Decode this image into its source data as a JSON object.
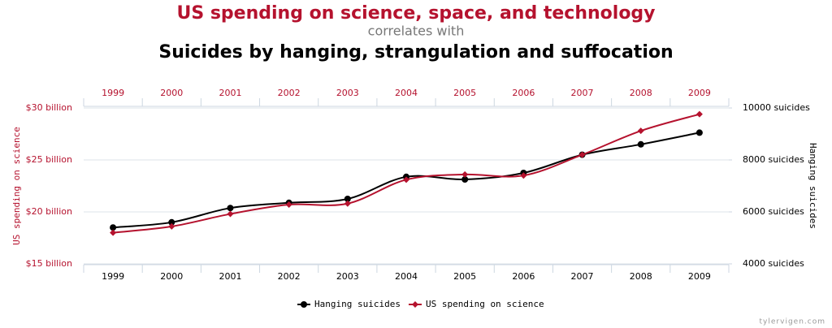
{
  "chart_data": {
    "type": "line",
    "title": "US spending on science, space, and technology",
    "subtitle": "correlates with",
    "title2": "Suicides by hanging, strangulation and suffocation",
    "categories": [
      "1999",
      "2000",
      "2001",
      "2002",
      "2003",
      "2004",
      "2005",
      "2006",
      "2007",
      "2008",
      "2009"
    ],
    "series": [
      {
        "name": "Hanging suicides",
        "color": "#000000",
        "axis": "y2",
        "values": [
          5400,
          5600,
          6150,
          6350,
          6500,
          7350,
          7250,
          7500,
          8200,
          8600,
          9050
        ]
      },
      {
        "name": "US spending on science",
        "color": "#b5122e",
        "values": [
          18.0,
          18.6,
          19.8,
          20.7,
          20.8,
          23.1,
          23.6,
          23.5,
          25.5,
          27.8,
          29.4
        ]
      }
    ],
    "ylabel": "US spending on science",
    "y2label": "Hanging suicides",
    "ylim": [
      15,
      30
    ],
    "yticks": [
      {
        "value": 15,
        "label": "$15 billion"
      },
      {
        "value": 20,
        "label": "$20 billion"
      },
      {
        "value": 25,
        "label": "$25 billion"
      },
      {
        "value": 30,
        "label": "$30 billion"
      }
    ],
    "y2lim": [
      4000,
      10000
    ],
    "y2ticks": [
      {
        "value": 4000,
        "label": "4000 suicides"
      },
      {
        "value": 6000,
        "label": "6000 suicides"
      },
      {
        "value": 8000,
        "label": "8000 suicides"
      },
      {
        "value": 10000,
        "label": "10000 suicides"
      }
    ],
    "grid": true,
    "legend": "bottom",
    "source": "tylervigen.com"
  }
}
